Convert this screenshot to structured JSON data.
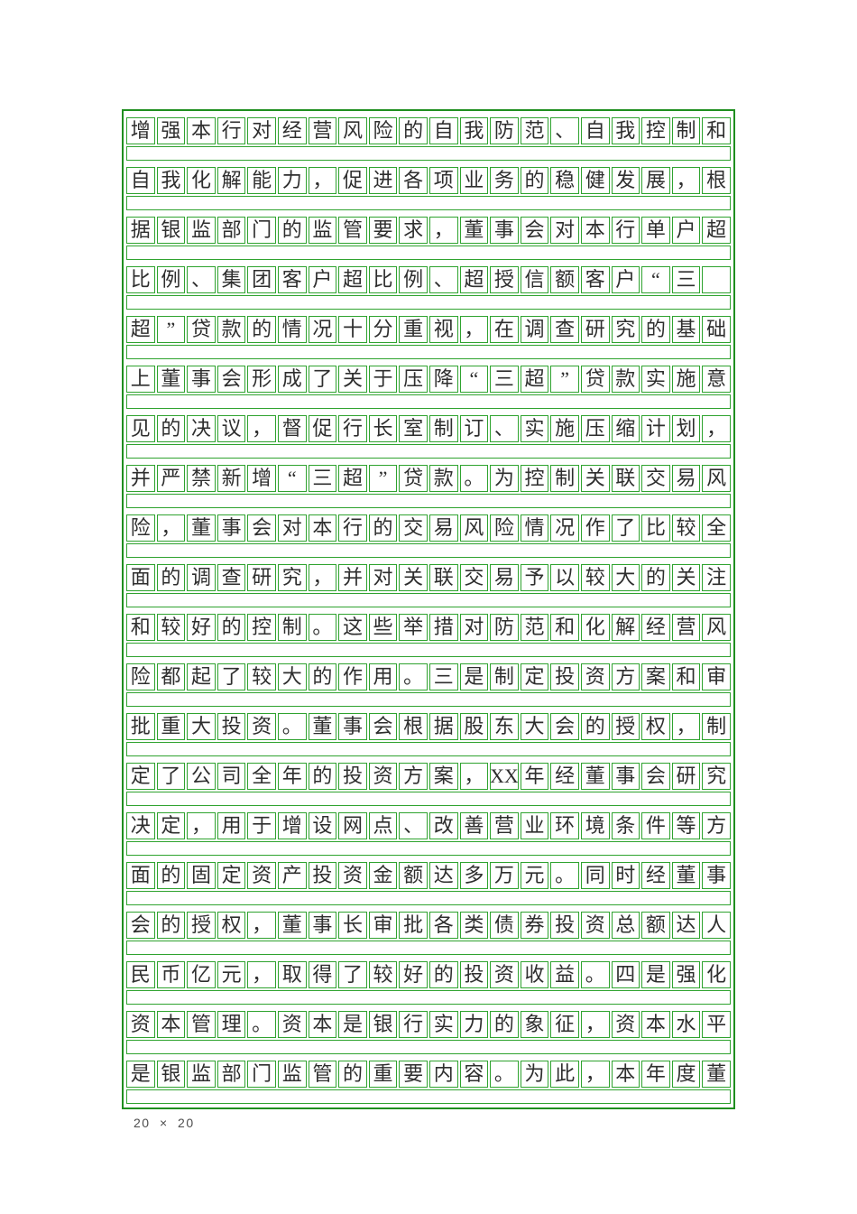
{
  "grid": {
    "columns": 20,
    "rows_count": 20,
    "border_color": "#2fa32f",
    "outer_border_color": "#1f8f1f",
    "text_color": "#2e2e2e",
    "rows": [
      [
        "增",
        "强",
        "本",
        "行",
        "对",
        "经",
        "营",
        "风",
        "险",
        "的",
        "自",
        "我",
        "防",
        "范",
        "、",
        "自",
        "我",
        "控",
        "制",
        "和"
      ],
      [
        "自",
        "我",
        "化",
        "解",
        "能",
        "力",
        "，",
        "促",
        "进",
        "各",
        "项",
        "业",
        "务",
        "的",
        "稳",
        "健",
        "发",
        "展",
        "，",
        "根"
      ],
      [
        "据",
        "银",
        "监",
        "部",
        "门",
        "的",
        "监",
        "管",
        "要",
        "求",
        "，",
        "董",
        "事",
        "会",
        "对",
        "本",
        "行",
        "单",
        "户",
        "超"
      ],
      [
        "比",
        "例",
        "、",
        "集",
        "团",
        "客",
        "户",
        "超",
        "比",
        "例",
        "、",
        "超",
        "授",
        "信",
        "额",
        "客",
        "户",
        "“",
        "三",
        ""
      ],
      [
        "超",
        "”",
        "贷",
        "款",
        "的",
        "情",
        "况",
        "十",
        "分",
        "重",
        "视",
        "，",
        "在",
        "调",
        "查",
        "研",
        "究",
        "的",
        "基",
        "础"
      ],
      [
        "上",
        "董",
        "事",
        "会",
        "形",
        "成",
        "了",
        "关",
        "于",
        "压",
        "降",
        "“",
        "三",
        "超",
        "”",
        "贷",
        "款",
        "实",
        "施",
        "意"
      ],
      [
        "见",
        "的",
        "决",
        "议",
        "，",
        "督",
        "促",
        "行",
        "长",
        "室",
        "制",
        "订",
        "、",
        "实",
        "施",
        "压",
        "缩",
        "计",
        "划",
        "，"
      ],
      [
        "并",
        "严",
        "禁",
        "新",
        "增",
        "“",
        "三",
        "超",
        "”",
        "贷",
        "款",
        "。",
        "为",
        "控",
        "制",
        "关",
        "联",
        "交",
        "易",
        "风"
      ],
      [
        "险",
        "，",
        "董",
        "事",
        "会",
        "对",
        "本",
        "行",
        "的",
        "交",
        "易",
        "风",
        "险",
        "情",
        "况",
        "作",
        "了",
        "比",
        "较",
        "全"
      ],
      [
        "面",
        "的",
        "调",
        "查",
        "研",
        "究",
        "，",
        "并",
        "对",
        "关",
        "联",
        "交",
        "易",
        "予",
        "以",
        "较",
        "大",
        "的",
        "关",
        "注"
      ],
      [
        "和",
        "较",
        "好",
        "的",
        "控",
        "制",
        "。",
        "这",
        "些",
        "举",
        "措",
        "对",
        "防",
        "范",
        "和",
        "化",
        "解",
        "经",
        "营",
        "风"
      ],
      [
        "险",
        "都",
        "起",
        "了",
        "较",
        "大",
        "的",
        "作",
        "用",
        "。",
        "三",
        "是",
        "制",
        "定",
        "投",
        "资",
        "方",
        "案",
        "和",
        "审"
      ],
      [
        "批",
        "重",
        "大",
        "投",
        "资",
        "。",
        "董",
        "事",
        "会",
        "根",
        "据",
        "股",
        "东",
        "大",
        "会",
        "的",
        "授",
        "权",
        "，",
        "制"
      ],
      [
        "定",
        "了",
        "公",
        "司",
        "全",
        "年",
        "的",
        "投",
        "资",
        "方",
        "案",
        "，",
        "XX",
        "年",
        "经",
        "董",
        "事",
        "会",
        "研",
        "究"
      ],
      [
        "决",
        "定",
        "，",
        "用",
        "于",
        "增",
        "设",
        "网",
        "点",
        "、",
        "改",
        "善",
        "营",
        "业",
        "环",
        "境",
        "条",
        "件",
        "等",
        "方"
      ],
      [
        "面",
        "的",
        "固",
        "定",
        "资",
        "产",
        "投",
        "资",
        "金",
        "额",
        "达",
        "多",
        "万",
        "元",
        "。",
        "同",
        "时",
        "经",
        "董",
        "事"
      ],
      [
        "会",
        "的",
        "授",
        "权",
        "，",
        "董",
        "事",
        "长",
        "审",
        "批",
        "各",
        "类",
        "债",
        "券",
        "投",
        "资",
        "总",
        "额",
        "达",
        "人"
      ],
      [
        "民",
        "币",
        "亿",
        "元",
        "，",
        "取",
        "得",
        "了",
        "较",
        "好",
        "的",
        "投",
        "资",
        "收",
        "益",
        "。",
        "四",
        "是",
        "强",
        "化"
      ],
      [
        "资",
        "本",
        "管",
        "理",
        "。",
        "资",
        "本",
        "是",
        "银",
        "行",
        "实",
        "力",
        "的",
        "象",
        "征",
        "，",
        "资",
        "本",
        "水",
        "平"
      ],
      [
        "是",
        "银",
        "监",
        "部",
        "门",
        "监",
        "管",
        "的",
        "重",
        "要",
        "内",
        "容",
        "。",
        "为",
        "此",
        "，",
        "本",
        "年",
        "度",
        "董"
      ]
    ]
  },
  "footer": {
    "size_label": "20 × 20",
    "color": "#4d4d4d"
  }
}
